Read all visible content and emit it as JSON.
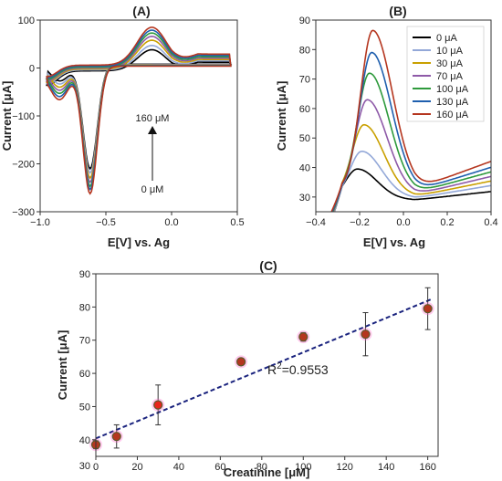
{
  "chart_data": [
    {
      "panel": "(A)",
      "type": "line",
      "xlabel": "E[V] vs. Ag",
      "ylabel": "Current [μA]",
      "xlim": [
        -1.0,
        0.5
      ],
      "ylim": [
        -300,
        100
      ],
      "xticks": [
        "−1.0",
        "−0.5",
        "0.0",
        "0.5"
      ],
      "yticks": [
        "100",
        "0",
        "−100",
        "−200",
        "−300"
      ],
      "annotation_top": "160 μM",
      "annotation_bottom": "0 μM",
      "series": [
        {
          "name": "0 μA",
          "color": "#000000",
          "cathodic_peak": -210,
          "anodic_peak": 38
        },
        {
          "name": "10 μA",
          "color": "#93a8d8",
          "cathodic_peak": -218,
          "anodic_peak": 47
        },
        {
          "name": "30 μA",
          "color": "#c9a000",
          "cathodic_peak": -228,
          "anodic_peak": 58
        },
        {
          "name": "70 μA",
          "color": "#8e5aa8",
          "cathodic_peak": -236,
          "anodic_peak": 66
        },
        {
          "name": "100 μA",
          "color": "#2e9a3c",
          "cathodic_peak": -244,
          "anodic_peak": 73
        },
        {
          "name": "130 μA",
          "color": "#1f5fae",
          "cathodic_peak": -250,
          "anodic_peak": 79
        },
        {
          "name": "160 μA",
          "color": "#b5361f",
          "cathodic_peak": -258,
          "anodic_peak": 85
        }
      ]
    },
    {
      "panel": "(B)",
      "type": "line",
      "xlabel": "E[V] vs. Ag",
      "ylabel": "Current [μA]",
      "xlim": [
        -0.4,
        0.4
      ],
      "ylim": [
        25,
        90
      ],
      "xticks": [
        "−0.4",
        "−0.2",
        "0.0",
        "0.2",
        "0.4"
      ],
      "yticks": [
        "90",
        "80",
        "70",
        "60",
        "50",
        "40",
        "30"
      ],
      "legend_position": "top-right",
      "series": [
        {
          "name": "0 μA",
          "color": "#000000",
          "peak_x": -0.21,
          "peak_y": 39.5,
          "end_y": 32
        },
        {
          "name": "10 μA",
          "color": "#93a8d8",
          "peak_x": -0.19,
          "peak_y": 45.5,
          "end_y": 33.5
        },
        {
          "name": "30 μA",
          "color": "#c9a000",
          "peak_x": -0.18,
          "peak_y": 54.5,
          "end_y": 34.5
        },
        {
          "name": "70 μA",
          "color": "#8e5aa8",
          "peak_x": -0.165,
          "peak_y": 63,
          "end_y": 35.5
        },
        {
          "name": "100 μA",
          "color": "#2e9a3c",
          "peak_x": -0.155,
          "peak_y": 72,
          "end_y": 36.5
        },
        {
          "name": "130 μA",
          "color": "#1f5fae",
          "peak_x": -0.145,
          "peak_y": 79,
          "end_y": 37.5
        },
        {
          "name": "160 μA",
          "color": "#b5361f",
          "peak_x": -0.14,
          "peak_y": 86.5,
          "end_y": 39
        }
      ]
    },
    {
      "panel": "(C)",
      "type": "scatter",
      "xlabel": "Creatinine [μM]",
      "ylabel": "Current [μA]",
      "xlim": [
        0,
        165
      ],
      "ylim": [
        35,
        90
      ],
      "xticks": [
        "0",
        "20",
        "40",
        "60",
        "80",
        "100",
        "120",
        "140",
        "160"
      ],
      "yticks": [
        "90",
        "80",
        "70",
        "60",
        "50",
        "40",
        "30"
      ],
      "r2_label": "R",
      "r2_sup": "2",
      "r2_value": "=0.9553",
      "fit": {
        "slope": 0.2593,
        "intercept": 40.4
      },
      "points": [
        {
          "x": 0,
          "y": 38.5,
          "err": 1.2
        },
        {
          "x": 10,
          "y": 41,
          "err": 3.5
        },
        {
          "x": 30,
          "y": 50.5,
          "err": 6
        },
        {
          "x": 70,
          "y": 63.5,
          "err": 1
        },
        {
          "x": 100,
          "y": 71,
          "err": 1.3
        },
        {
          "x": 130,
          "y": 71.8,
          "err": 6.5
        },
        {
          "x": 160,
          "y": 79.5,
          "err": 6.3
        }
      ]
    }
  ]
}
